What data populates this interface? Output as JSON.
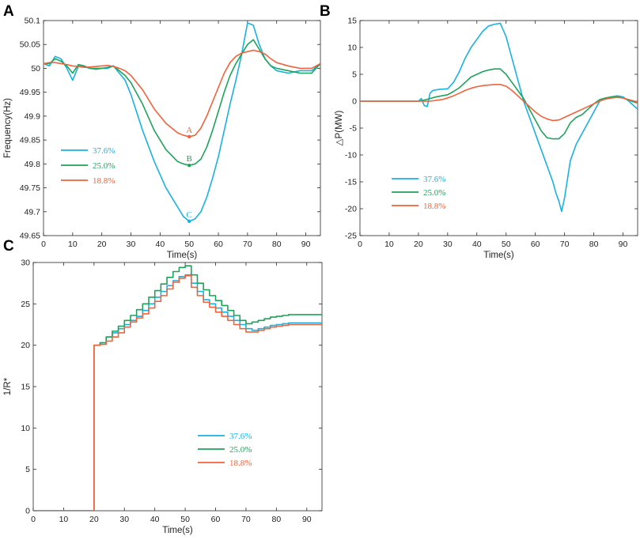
{
  "chart_data": [
    {
      "panel": "A",
      "type": "line",
      "xlabel": "Time(s)",
      "ylabel": "Frequency(Hz)",
      "xlim": [
        0,
        95
      ],
      "ylim": [
        49.65,
        50.1
      ],
      "xticks": [
        0,
        10,
        20,
        30,
        40,
        50,
        60,
        70,
        80,
        90
      ],
      "yticks": [
        49.65,
        49.7,
        49.75,
        49.8,
        49.85,
        49.9,
        49.95,
        50,
        50.05,
        50.1
      ],
      "ytick_labels": [
        "49.65",
        "49.7",
        "49.75",
        "49.8",
        "49.85",
        "49.9",
        "49.95",
        "50",
        "50.05",
        "50.1"
      ],
      "legend_position": "middle-left",
      "series": [
        {
          "name": "37.6%",
          "color": "#19b2e0",
          "x": [
            0,
            2,
            4,
            6,
            8,
            10,
            12,
            14,
            16,
            18,
            20,
            22,
            24,
            26,
            28,
            30,
            34,
            38,
            42,
            46,
            48,
            50,
            52,
            54,
            56,
            58,
            60,
            62,
            64,
            66,
            68,
            70,
            72,
            74,
            76,
            78,
            80,
            84,
            88,
            92,
            95
          ],
          "y": [
            50.01,
            50.005,
            50.025,
            50.02,
            50.0,
            49.975,
            50.005,
            50.003,
            50.0,
            49.998,
            50.0,
            50.0,
            50.005,
            49.99,
            49.975,
            49.945,
            49.87,
            49.805,
            49.75,
            49.71,
            49.69,
            49.68,
            49.685,
            49.7,
            49.73,
            49.77,
            49.815,
            49.87,
            49.925,
            49.975,
            50.03,
            50.095,
            50.09,
            50.05,
            50.02,
            50.005,
            49.995,
            49.99,
            49.995,
            49.995,
            50.01
          ]
        },
        {
          "name": "25.0%",
          "color": "#1fa35a",
          "x": [
            0,
            2,
            4,
            6,
            8,
            10,
            12,
            14,
            16,
            18,
            20,
            22,
            24,
            26,
            28,
            30,
            34,
            38,
            42,
            46,
            48,
            50,
            52,
            54,
            56,
            58,
            60,
            62,
            64,
            66,
            68,
            70,
            72,
            74,
            76,
            78,
            80,
            84,
            88,
            92,
            95
          ],
          "y": [
            50.01,
            50.01,
            50.02,
            50.015,
            50.005,
            49.99,
            50.008,
            50.005,
            50.0,
            50.0,
            50.0,
            50.002,
            50.005,
            49.995,
            49.985,
            49.97,
            49.925,
            49.87,
            49.83,
            49.805,
            49.8,
            49.797,
            49.8,
            49.81,
            49.835,
            49.87,
            49.91,
            49.95,
            49.985,
            50.01,
            50.03,
            50.05,
            50.06,
            50.04,
            50.02,
            50.005,
            50.0,
            49.995,
            49.99,
            49.99,
            50.01
          ]
        },
        {
          "name": "18.8%",
          "color": "#f0633c",
          "x": [
            0,
            2,
            4,
            6,
            8,
            10,
            12,
            14,
            16,
            18,
            20,
            22,
            24,
            26,
            28,
            30,
            34,
            38,
            42,
            46,
            48,
            50,
            52,
            54,
            56,
            58,
            60,
            62,
            64,
            66,
            68,
            70,
            72,
            74,
            76,
            78,
            80,
            84,
            88,
            92,
            95
          ],
          "y": [
            50.01,
            50.012,
            50.012,
            50.01,
            50.008,
            50.005,
            50.004,
            50.002,
            50.003,
            50.004,
            50.005,
            50.006,
            50.004,
            50.0,
            49.995,
            49.985,
            49.955,
            49.915,
            49.885,
            49.865,
            49.86,
            49.857,
            49.86,
            49.875,
            49.9,
            49.93,
            49.96,
            49.99,
            50.012,
            50.025,
            50.032,
            50.035,
            50.038,
            50.035,
            50.03,
            50.02,
            50.012,
            50.005,
            50.0,
            50.0,
            50.01
          ]
        }
      ],
      "annotations": [
        {
          "text": "A",
          "x": 50,
          "y": 49.857,
          "color": "#f0633c"
        },
        {
          "text": "B",
          "x": 50,
          "y": 49.797,
          "color": "#1fa35a"
        },
        {
          "text": "C",
          "x": 50,
          "y": 49.68,
          "color": "#19b2e0"
        }
      ]
    },
    {
      "panel": "B",
      "type": "line",
      "xlabel": "Time(s)",
      "ylabel": "△P(MW)",
      "xlim": [
        0,
        95
      ],
      "ylim": [
        -25,
        15
      ],
      "xticks": [
        0,
        10,
        20,
        30,
        40,
        50,
        60,
        70,
        80,
        90
      ],
      "yticks": [
        -25,
        -20,
        -15,
        -10,
        -5,
        0,
        5,
        10,
        15
      ],
      "ytick_labels": [
        "-25",
        "-20",
        "-15",
        "-10",
        "-5",
        "0",
        "5",
        "10",
        "15"
      ],
      "legend_position": "bottom-left",
      "series": [
        {
          "name": "37.6%",
          "color": "#19b2e0",
          "x": [
            0,
            20,
            21,
            22,
            23,
            24,
            25,
            27,
            30,
            32,
            34,
            36,
            38,
            40,
            42,
            44,
            46,
            48,
            50,
            52,
            54,
            56,
            58,
            60,
            62,
            64,
            66,
            67,
            68,
            69,
            70,
            72,
            74,
            76,
            78,
            80,
            82,
            84,
            86,
            88,
            90,
            92,
            94,
            95
          ],
          "y": [
            0,
            0,
            0.5,
            -0.8,
            -1.0,
            1.5,
            2.0,
            2.2,
            2.3,
            3.5,
            5.5,
            8,
            10,
            11.5,
            13,
            14,
            14.3,
            14.5,
            12,
            8,
            4,
            0,
            -3,
            -6,
            -9,
            -12,
            -15,
            -17,
            -18.5,
            -20.5,
            -18,
            -11,
            -8,
            -6,
            -4,
            -2,
            0,
            0.5,
            0.8,
            1.0,
            0.8,
            0,
            -1.0,
            -1.5
          ]
        },
        {
          "name": "25.0%",
          "color": "#1fa35a",
          "x": [
            0,
            20,
            22,
            24,
            26,
            28,
            30,
            32,
            34,
            36,
            38,
            40,
            42,
            44,
            46,
            48,
            50,
            52,
            54,
            56,
            58,
            60,
            62,
            64,
            66,
            68,
            70,
            72,
            74,
            76,
            78,
            80,
            82,
            84,
            86,
            88,
            90,
            92,
            94,
            95
          ],
          "y": [
            0,
            0,
            0.2,
            0.5,
            0.8,
            1.0,
            1.2,
            1.8,
            2.5,
            3.5,
            4.5,
            5.0,
            5.5,
            5.8,
            6.0,
            6.0,
            5.0,
            3.5,
            2.0,
            0.5,
            -1.5,
            -3.5,
            -5.5,
            -6.8,
            -7.0,
            -7.0,
            -6.0,
            -4.0,
            -3.0,
            -2.5,
            -1.5,
            -0.5,
            0.3,
            0.6,
            0.8,
            0.8,
            0.6,
            0.2,
            -0.2,
            -0.3
          ]
        },
        {
          "name": "18.8%",
          "color": "#f0633c",
          "x": [
            0,
            20,
            24,
            28,
            30,
            32,
            34,
            36,
            38,
            40,
            42,
            44,
            46,
            48,
            50,
            52,
            54,
            56,
            58,
            60,
            62,
            64,
            66,
            68,
            70,
            72,
            74,
            76,
            78,
            80,
            82,
            84,
            86,
            88,
            90,
            92,
            94,
            95
          ],
          "y": [
            0,
            0,
            0.0,
            0.3,
            0.6,
            1.0,
            1.5,
            2.0,
            2.4,
            2.7,
            2.9,
            3.0,
            3.1,
            3.1,
            2.8,
            2.0,
            1.0,
            0.0,
            -1.0,
            -2.0,
            -2.8,
            -3.3,
            -3.6,
            -3.5,
            -3.0,
            -2.5,
            -2.0,
            -1.5,
            -1.0,
            -0.5,
            0.0,
            0.4,
            0.6,
            0.7,
            0.6,
            0.3,
            0.0,
            -0.1
          ]
        }
      ]
    },
    {
      "panel": "C",
      "type": "line",
      "xlabel": "Time(s)",
      "ylabel": "1/R*",
      "xlim": [
        0,
        95
      ],
      "ylim": [
        0,
        30
      ],
      "xticks": [
        0,
        10,
        20,
        30,
        40,
        50,
        60,
        70,
        80,
        90
      ],
      "yticks": [
        0,
        5,
        10,
        15,
        20,
        25,
        30
      ],
      "ytick_labels": [
        "0",
        "5",
        "10",
        "15",
        "20",
        "25",
        "30"
      ],
      "legend_position": "middle-center",
      "step": true,
      "series": [
        {
          "name": "37.6%",
          "color": "#19b2e0",
          "x": [
            0,
            20,
            20,
            22,
            24,
            26,
            28,
            30,
            32,
            34,
            36,
            38,
            40,
            42,
            44,
            46,
            48,
            50,
            52,
            54,
            56,
            58,
            60,
            62,
            64,
            66,
            68,
            70,
            72,
            74,
            76,
            78,
            80,
            82,
            84,
            95
          ],
          "y": [
            0,
            0,
            20,
            20.3,
            21.0,
            21.5,
            22.0,
            22.5,
            23.0,
            23.5,
            24.2,
            25.0,
            25.8,
            26.5,
            27.2,
            27.8,
            28.3,
            28.5,
            27.5,
            26.5,
            25.5,
            25.0,
            24.5,
            24.0,
            23.5,
            23.0,
            22.5,
            22.0,
            21.8,
            22.0,
            22.2,
            22.4,
            22.5,
            22.6,
            22.7,
            22.7
          ]
        },
        {
          "name": "25.0%",
          "color": "#1fa35a",
          "x": [
            0,
            20,
            20,
            22,
            24,
            26,
            28,
            30,
            32,
            34,
            36,
            38,
            40,
            42,
            44,
            46,
            48,
            50,
            52,
            54,
            56,
            58,
            60,
            62,
            64,
            66,
            68,
            70,
            72,
            74,
            76,
            78,
            80,
            82,
            84,
            95
          ],
          "y": [
            0,
            0,
            20,
            20.3,
            21.0,
            21.7,
            22.3,
            23.0,
            23.6,
            24.3,
            25.0,
            25.8,
            26.6,
            27.4,
            28.2,
            28.9,
            29.4,
            29.6,
            28.5,
            27.5,
            26.7,
            26.0,
            25.4,
            24.8,
            24.2,
            23.6,
            23.0,
            22.6,
            22.8,
            23.0,
            23.2,
            23.4,
            23.5,
            23.6,
            23.7,
            23.7
          ]
        },
        {
          "name": "18.8%",
          "color": "#f0633c",
          "x": [
            0,
            20,
            20,
            22,
            24,
            26,
            28,
            30,
            32,
            34,
            36,
            38,
            40,
            42,
            44,
            46,
            48,
            50,
            52,
            54,
            56,
            58,
            60,
            62,
            64,
            66,
            68,
            70,
            72,
            74,
            76,
            78,
            80,
            82,
            84,
            95
          ],
          "y": [
            0,
            0,
            20,
            20.1,
            20.5,
            21.0,
            21.5,
            22.2,
            22.8,
            23.3,
            23.8,
            24.5,
            25.3,
            26.0,
            26.8,
            27.6,
            28.1,
            28.4,
            27.0,
            26.0,
            25.2,
            24.6,
            24.0,
            23.5,
            23.0,
            22.5,
            22.0,
            21.6,
            21.6,
            21.8,
            22.0,
            22.2,
            22.3,
            22.4,
            22.5,
            22.5
          ]
        }
      ]
    }
  ]
}
